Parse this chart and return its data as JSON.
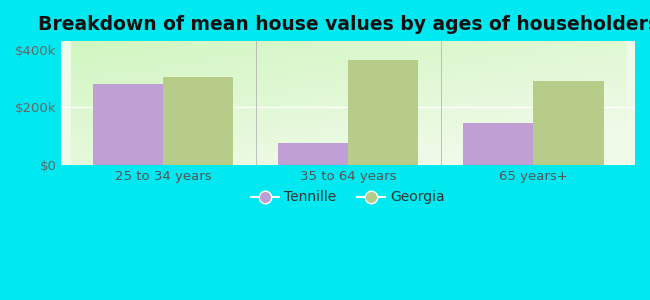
{
  "title": "Breakdown of mean house values by ages of householders",
  "categories": [
    "25 to 34 years",
    "35 to 64 years",
    "65 years+"
  ],
  "tennille_values": [
    280000,
    75000,
    145000
  ],
  "georgia_values": [
    305000,
    365000,
    290000
  ],
  "tennille_color": "#bf9fd4",
  "georgia_color": "#b8cc8a",
  "background_outer": "#00e8f0",
  "background_inner_color": "#d8f0cc",
  "yticks": [
    0,
    200000,
    400000
  ],
  "ytick_labels": [
    "$0",
    "$200k",
    "$400k"
  ],
  "ylim": [
    0,
    430000
  ],
  "legend_tennille": "Tennille",
  "legend_georgia": "Georgia",
  "bar_width": 0.38,
  "title_fontsize": 13.5,
  "axis_label_fontsize": 9.5,
  "legend_fontsize": 10
}
